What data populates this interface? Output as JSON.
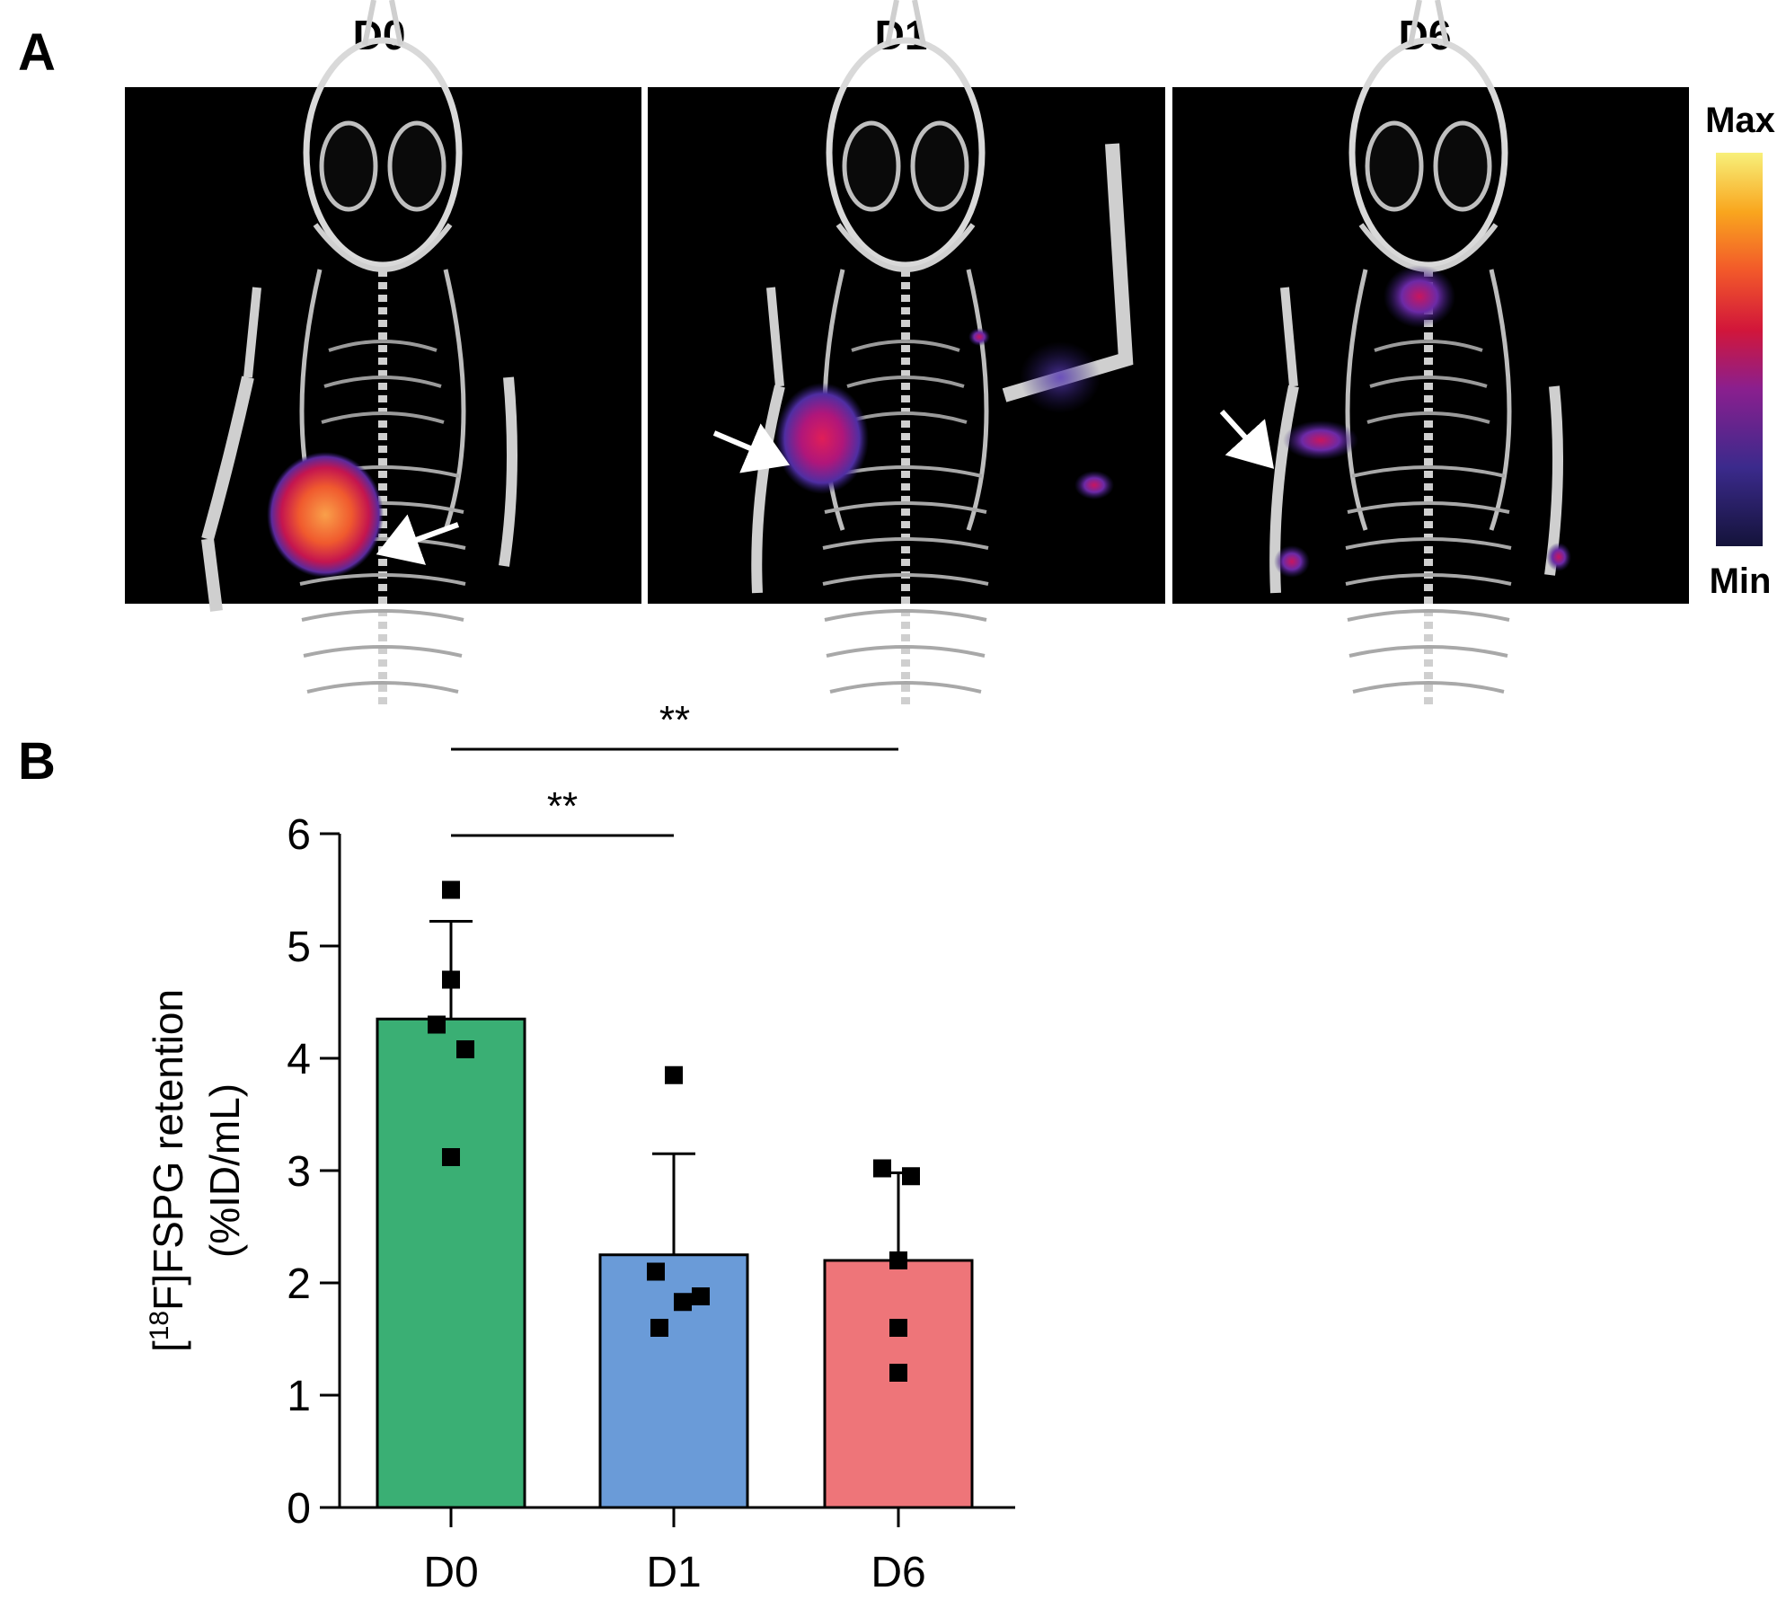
{
  "panel_a": {
    "label": "A",
    "images": [
      {
        "label": "D0",
        "uptake": "high"
      },
      {
        "label": "D1",
        "uptake": "medium"
      },
      {
        "label": "D6",
        "uptake": "low"
      }
    ],
    "colorbar": {
      "max_label": "Max",
      "min_label": "Min",
      "colors": [
        "#14133a",
        "#3b2a8c",
        "#8a1f8e",
        "#d2163a",
        "#f2582a",
        "#f9a61e",
        "#f8f07a"
      ]
    }
  },
  "chart_data": {
    "panel_label": "B",
    "type": "bar",
    "title": "",
    "categories": [
      "D0",
      "D1",
      "D6"
    ],
    "values": [
      4.35,
      2.25,
      2.2
    ],
    "errors": [
      0.87,
      0.9,
      0.78
    ],
    "bar_colors": [
      "#3aaf74",
      "#6a9bd8",
      "#ee7579"
    ],
    "points": [
      [
        5.5,
        4.7,
        4.3,
        4.08,
        3.12
      ],
      [
        3.85,
        2.1,
        1.88,
        1.83,
        1.6
      ],
      [
        3.02,
        2.95,
        2.2,
        1.6,
        1.2
      ]
    ],
    "xlabel": "",
    "ylabel_line1_prefix": "[",
    "ylabel_line1_sup": "18",
    "ylabel_line1_rest": "F]FSPG retention",
    "ylabel_line2": "(%ID/mL)",
    "ylim": [
      0,
      6
    ],
    "yticks": [
      "0",
      "1",
      "2",
      "3",
      "4",
      "5",
      "6"
    ],
    "grid": false,
    "significance": [
      {
        "from": "D0",
        "to": "D1",
        "label": "**"
      },
      {
        "from": "D0",
        "to": "D6",
        "label": "**"
      }
    ]
  }
}
